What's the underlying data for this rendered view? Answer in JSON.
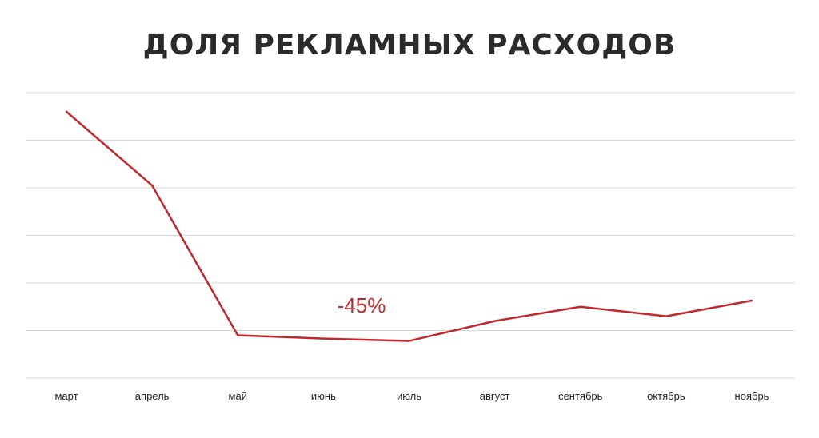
{
  "chart_data": {
    "type": "line",
    "title": "ДОЛЯ РЕКЛАМНЫХ РАСХОДОВ",
    "xlabel": "",
    "ylabel": "",
    "categories": [
      "март",
      "апрель",
      "май",
      "июнь",
      "июль",
      "август",
      "сентябрь",
      "октябрь",
      "ноябрь"
    ],
    "series": [
      {
        "values": [
          5.6,
          4.05,
          0.9,
          0.83,
          0.78,
          1.2,
          1.5,
          1.3,
          1.63
        ]
      }
    ],
    "ylim": [
      0,
      6
    ],
    "grid": true,
    "annotations": [
      {
        "text": "-45%"
      }
    ],
    "colors": {
      "line": "#c0282d",
      "grid": "#d9d9d9",
      "title": "#2b2b2b"
    }
  }
}
